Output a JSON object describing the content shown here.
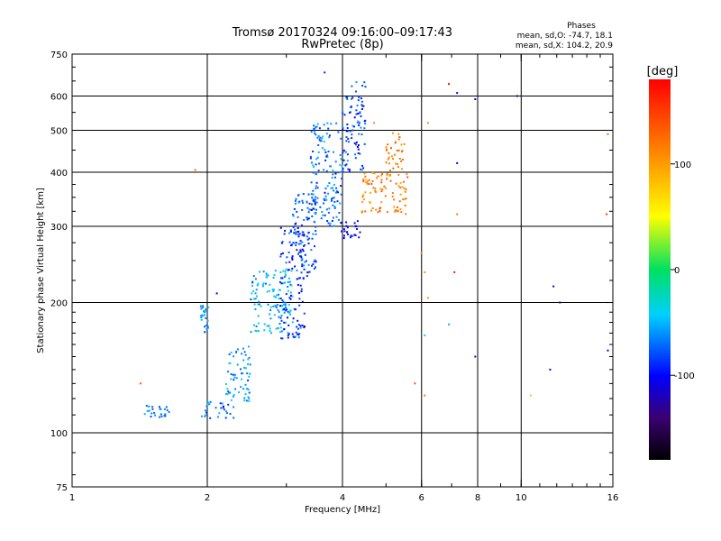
{
  "header": {
    "title": "Tromsø 20170324 09:16:00–09:17:43",
    "subtitle": "RwPretec (8p)"
  },
  "phase_box": {
    "title": "Phases",
    "line_o": "mean, sd,O: -74.7, 18.1",
    "line_x": "mean, sd,X: 104.2, 20.9"
  },
  "colorbar": {
    "label": "[deg]",
    "range": [
      -180,
      180
    ],
    "ticks": [
      {
        "value": 100,
        "label": "100"
      },
      {
        "value": 0,
        "label": "0"
      },
      {
        "value": -100,
        "label": "-100"
      }
    ]
  },
  "chart_data": {
    "type": "scatter",
    "title": "Tromsø 20170324 09:16:00–09:17:43",
    "subtitle": "RwPretec (8p)",
    "xlabel": "Frequency [MHz]",
    "ylabel": "Stationary phase Virtual Height [km]",
    "x_scale": "log",
    "y_scale": "log",
    "xlim": [
      1,
      16
    ],
    "ylim": [
      75,
      750
    ],
    "x_major_ticks": [
      {
        "value": 1,
        "label": "1"
      },
      {
        "value": 2,
        "label": "2"
      },
      {
        "value": 4,
        "label": "4"
      },
      {
        "value": 6,
        "label": "6"
      },
      {
        "value": 8,
        "label": "8"
      },
      {
        "value": 10,
        "label": "10"
      },
      {
        "value": 16,
        "label": "16"
      }
    ],
    "y_major_ticks": [
      {
        "value": 75,
        "label": "75"
      },
      {
        "value": 100,
        "label": "100"
      },
      {
        "value": 200,
        "label": "200"
      },
      {
        "value": 300,
        "label": "300"
      },
      {
        "value": 400,
        "label": "400"
      },
      {
        "value": 500,
        "label": "500"
      },
      {
        "value": 600,
        "label": "600"
      },
      {
        "value": 750,
        "label": "750"
      }
    ],
    "x_gridlines": [
      2,
      4,
      6,
      8,
      10
    ],
    "y_gridlines": [
      100,
      200,
      300,
      400,
      500,
      600
    ],
    "color_by": "phase [deg]",
    "clusters": [
      {
        "x_range": [
          1.45,
          1.65
        ],
        "y_range": [
          108,
          116
        ],
        "phase_mean": -70,
        "phase_sd": 8
      },
      {
        "x_range": [
          1.9,
          2.3
        ],
        "y_range": [
          108,
          118
        ],
        "phase_mean": -70,
        "phase_sd": 15
      },
      {
        "x_range": [
          2.2,
          2.5
        ],
        "y_range": [
          118,
          160
        ],
        "phase_mean": -60,
        "phase_sd": 12
      },
      {
        "x_range": [
          1.93,
          2.02
        ],
        "y_range": [
          170,
          200
        ],
        "phase_mean": -55,
        "phase_sd": 10
      },
      {
        "x_range": [
          2.5,
          3.1
        ],
        "y_range": [
          170,
          240
        ],
        "phase_mean": -50,
        "phase_sd": 14
      },
      {
        "x_range": [
          2.9,
          3.3
        ],
        "y_range": [
          165,
          300
        ],
        "phase_mean": -90,
        "phase_sd": 15
      },
      {
        "x_range": [
          3.1,
          3.5
        ],
        "y_range": [
          230,
          360
        ],
        "phase_mean": -80,
        "phase_sd": 15
      },
      {
        "x_range": [
          3.4,
          4.0
        ],
        "y_range": [
          300,
          520
        ],
        "phase_mean": -70,
        "phase_sd": 15
      },
      {
        "x_range": [
          3.95,
          4.4
        ],
        "y_range": [
          280,
          310
        ],
        "phase_mean": -100,
        "phase_sd": 10
      },
      {
        "x_range": [
          4.0,
          4.5
        ],
        "y_range": [
          400,
          650
        ],
        "phase_mean": -80,
        "phase_sd": 15
      },
      {
        "x_range": [
          4.4,
          5.6
        ],
        "y_range": [
          320,
          400
        ],
        "phase_mean": 115,
        "phase_sd": 15
      },
      {
        "x_range": [
          5.0,
          5.5
        ],
        "y_range": [
          400,
          500
        ],
        "phase_mean": 120,
        "phase_sd": 12
      }
    ],
    "isolated_points": [
      {
        "x": 1.88,
        "y": 405,
        "phase": 125
      },
      {
        "x": 1.42,
        "y": 130,
        "phase": 140
      },
      {
        "x": 2.1,
        "y": 210,
        "phase": -110
      },
      {
        "x": 3.65,
        "y": 680,
        "phase": -90
      },
      {
        "x": 4.7,
        "y": 520,
        "phase": 110
      },
      {
        "x": 6.2,
        "y": 520,
        "phase": 110
      },
      {
        "x": 6.9,
        "y": 640,
        "phase": 175
      },
      {
        "x": 7.2,
        "y": 610,
        "phase": -110
      },
      {
        "x": 7.2,
        "y": 420,
        "phase": -100
      },
      {
        "x": 7.2,
        "y": 320,
        "phase": 120
      },
      {
        "x": 7.1,
        "y": 235,
        "phase": 170
      },
      {
        "x": 7.9,
        "y": 590,
        "phase": -110
      },
      {
        "x": 9.8,
        "y": 600,
        "phase": -110
      },
      {
        "x": 6.0,
        "y": 260,
        "phase": 110
      },
      {
        "x": 6.1,
        "y": 235,
        "phase": 110
      },
      {
        "x": 6.2,
        "y": 205,
        "phase": 110
      },
      {
        "x": 6.1,
        "y": 168,
        "phase": -45
      },
      {
        "x": 6.9,
        "y": 178,
        "phase": -50
      },
      {
        "x": 5.8,
        "y": 130,
        "phase": 140
      },
      {
        "x": 6.1,
        "y": 122,
        "phase": 120
      },
      {
        "x": 7.9,
        "y": 150,
        "phase": -110
      },
      {
        "x": 10.5,
        "y": 122,
        "phase": 30
      },
      {
        "x": 11.6,
        "y": 140,
        "phase": -110
      },
      {
        "x": 11.8,
        "y": 218,
        "phase": -110
      },
      {
        "x": 12.2,
        "y": 200,
        "phase": -120
      },
      {
        "x": 15.5,
        "y": 320,
        "phase": 150
      },
      {
        "x": 15.6,
        "y": 490,
        "phase": 130
      },
      {
        "x": 15.6,
        "y": 155,
        "phase": -110
      }
    ]
  }
}
